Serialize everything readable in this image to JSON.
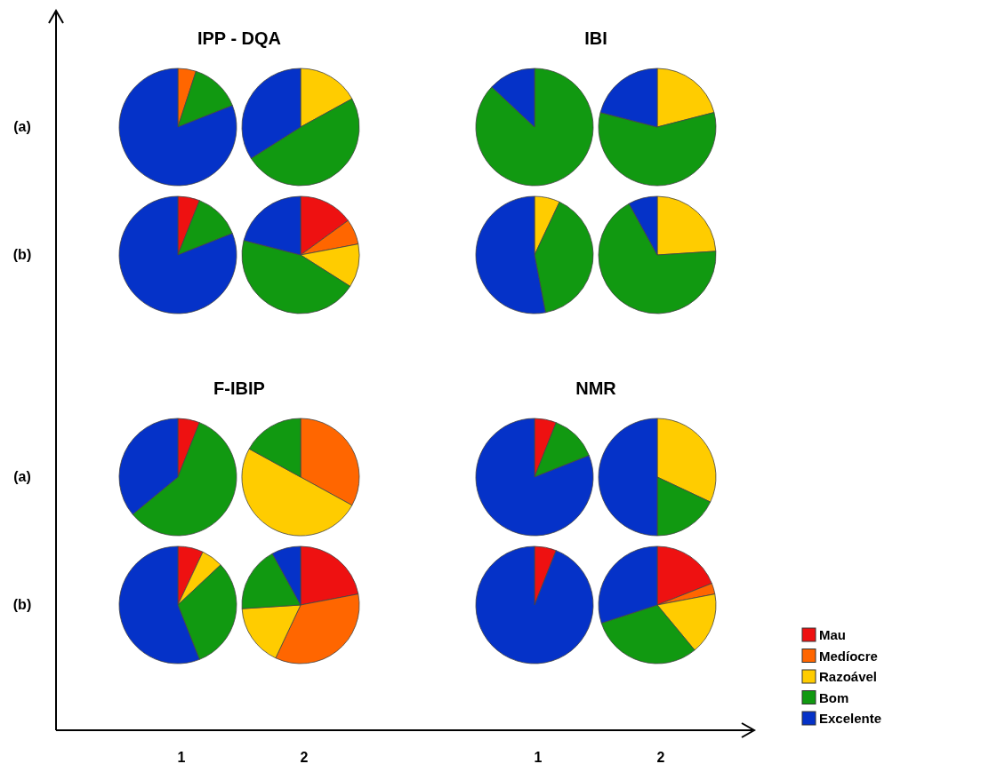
{
  "chart_data": [
    {
      "type": "pie",
      "title": "IPP - DQA",
      "annotations": [
        "(a)"
      ],
      "categories": [
        null,
        null,
        null
      ],
      "values": [
        5,
        14,
        81
      ],
      "colors": [
        "#ff6600",
        "#119911",
        "#0532c8"
      ]
    },
    {
      "type": "pie",
      "categories": [
        null,
        null,
        null
      ],
      "values": [
        17,
        49,
        34
      ],
      "colors": [
        "#ffcc00",
        "#119911",
        "#0532c8"
      ]
    },
    {
      "type": "pie",
      "annotations": [
        "(b)"
      ],
      "categories": [
        null,
        null,
        null
      ],
      "values": [
        6,
        13,
        81
      ],
      "colors": [
        "#ee1111",
        "#119911",
        "#0532c8"
      ]
    },
    {
      "type": "pie",
      "categories": [
        null,
        null,
        null,
        null,
        null
      ],
      "values": [
        15,
        7,
        12,
        45,
        21
      ],
      "colors": [
        "#ee1111",
        "#ff6600",
        "#ffcc00",
        "#119911",
        "#0532c8"
      ]
    },
    {
      "type": "pie",
      "title": "IBI",
      "categories": [
        null,
        null
      ],
      "values": [
        87,
        13
      ],
      "colors": [
        "#119911",
        "#0532c8"
      ]
    },
    {
      "type": "pie",
      "categories": [
        null,
        null,
        null
      ],
      "values": [
        21,
        58,
        21
      ],
      "colors": [
        "#ffcc00",
        "#119911",
        "#0532c8"
      ]
    },
    {
      "type": "pie",
      "categories": [
        null,
        null,
        null
      ],
      "values": [
        7,
        40,
        53
      ],
      "colors": [
        "#ffcc00",
        "#119911",
        "#0532c8"
      ]
    },
    {
      "type": "pie",
      "categories": [
        null,
        null,
        null
      ],
      "values": [
        24,
        68,
        8
      ],
      "colors": [
        "#ffcc00",
        "#119911",
        "#0532c8"
      ]
    },
    {
      "type": "pie",
      "title": "F-IBIP",
      "annotations": [
        "(a)"
      ],
      "categories": [
        null,
        null,
        null
      ],
      "values": [
        6,
        58,
        36
      ],
      "colors": [
        "#ee1111",
        "#119911",
        "#0532c8"
      ]
    },
    {
      "type": "pie",
      "categories": [
        null,
        null,
        null
      ],
      "values": [
        33,
        50,
        17
      ],
      "colors": [
        "#ff6600",
        "#ffcc00",
        "#119911"
      ]
    },
    {
      "type": "pie",
      "annotations": [
        "(b)",
        "1"
      ],
      "categories": [
        null,
        null,
        null,
        null
      ],
      "values": [
        7,
        6,
        31,
        56
      ],
      "colors": [
        "#ee1111",
        "#ffcc00",
        "#119911",
        "#0532c8"
      ]
    },
    {
      "type": "pie",
      "annotations": [
        "2"
      ],
      "categories": [
        null,
        null,
        null,
        null,
        null
      ],
      "values": [
        22,
        35,
        17,
        18,
        8
      ],
      "colors": [
        "#ee1111",
        "#ff6600",
        "#ffcc00",
        "#119911",
        "#0532c8"
      ]
    },
    {
      "type": "pie",
      "title": "NMR",
      "categories": [
        null,
        null,
        null
      ],
      "values": [
        6,
        13,
        81
      ],
      "colors": [
        "#ee1111",
        "#119911",
        "#0532c8"
      ]
    },
    {
      "type": "pie",
      "categories": [
        null,
        null,
        null
      ],
      "values": [
        32,
        18,
        50
      ],
      "colors": [
        "#ffcc00",
        "#119911",
        "#0532c8"
      ]
    },
    {
      "type": "pie",
      "annotations": [
        "1"
      ],
      "categories": [
        null,
        null
      ],
      "values": [
        6,
        94
      ],
      "colors": [
        "#ee1111",
        "#0532c8"
      ]
    },
    {
      "type": "pie",
      "annotations": [
        "2"
      ],
      "legend": "bottom right",
      "categories": [
        "Mau",
        "Medíocre",
        "Razoável",
        "Bom",
        "Excelente"
      ],
      "values": [
        19,
        3,
        17,
        31,
        30
      ],
      "colors": [
        "#ee1111",
        "#ff6600",
        "#ffcc00",
        "#119911",
        "#0532c8"
      ]
    }
  ]
}
